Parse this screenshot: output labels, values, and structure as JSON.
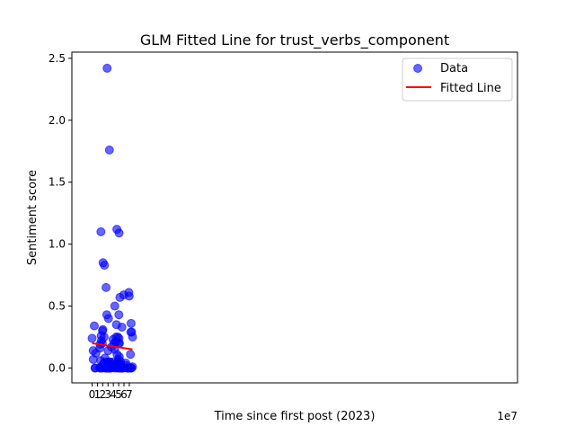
{
  "chart_data": {
    "type": "scatter",
    "title": "GLM Fitted Line for trust_verbs_component",
    "xlabel": "Time since first post (2023)",
    "ylabel": "Sentiment score",
    "x_offset_label": "1e7",
    "xlim": [
      -3.8,
      80
    ],
    "ylim": [
      -0.12,
      2.55
    ],
    "xticks": [
      0,
      1,
      2,
      3,
      4,
      5,
      6,
      7
    ],
    "yticks": [
      0.0,
      0.5,
      1.0,
      1.5,
      2.0,
      2.5
    ],
    "xtick_labels": [
      "0",
      "1",
      "2",
      "3",
      "4",
      "5",
      "6",
      "7"
    ],
    "ytick_labels": [
      "0.0",
      "0.5",
      "1.0",
      "1.5",
      "2.0",
      "2.5"
    ],
    "grid": false,
    "legend_position": "top-right",
    "series": [
      {
        "name": "Data",
        "kind": "scatter",
        "color": "#0000ff",
        "x": [
          0.0,
          2.0,
          2.2,
          4.2,
          5.6,
          5.9,
          7.2,
          14.1,
          14.6,
          15.0,
          15.6,
          16.1,
          16.6,
          17.1,
          17.4,
          17.7,
          18.2,
          19.2,
          19.4,
          19.6,
          19.9,
          20.2,
          20.6,
          22.1,
          22.7,
          23.2,
          23.6,
          24.1,
          24.9,
          25.3,
          26.2,
          26.3,
          26.6,
          26.9,
          27.1,
          27.2,
          27.4,
          27.6,
          27.7,
          27.9,
          28.1,
          28.2,
          28.3,
          28.6,
          28.7,
          29.1,
          29.4,
          30.1,
          30.8,
          31.1,
          31.4,
          31.6,
          32.1,
          32.4,
          32.6,
          32.8,
          33.0,
          33.2,
          33.4,
          33.6,
          33.8,
          34.0,
          34.2,
          34.5,
          35.7,
          36.5,
          37.1,
          39.4,
          40.1,
          41.2,
          41.9,
          42.5,
          42.7,
          43.1,
          43.5,
          43.9,
          45.0,
          45.2,
          45.6,
          45.8,
          46.4,
          46.6,
          46.9,
          47.1,
          47.5,
          48.0,
          48.4,
          49.2,
          49.5,
          49.8,
          50.1,
          50.4,
          50.6,
          50.8,
          51.3,
          51.5,
          52.0,
          52.3,
          52.9,
          53.1,
          53.4,
          53.7,
          54.0,
          54.2,
          54.6,
          55.0,
          55.4,
          56.1,
          56.4,
          57.0,
          59.1,
          59.4,
          63.4,
          64.4,
          65.4,
          66.4,
          66.9,
          67.4,
          69.1,
          69.8,
          70.4,
          72.1,
          72.6,
          72.9,
          73.1,
          73.4,
          74.1,
          74.5,
          75.9,
          76.1
        ],
        "y": [
          0.24,
          0.14,
          0.07,
          0.34,
          0.0,
          0.0,
          0.12,
          0.0,
          0.16,
          0.19,
          0.0,
          0.06,
          1.1,
          0.26,
          0.22,
          0.0,
          0.0,
          0.2,
          0.02,
          0.3,
          0.01,
          0.31,
          0.85,
          0.04,
          0.25,
          0.83,
          0.0,
          0.08,
          0.02,
          0.0,
          0.05,
          0.65,
          0.01,
          0.02,
          0.03,
          0.0,
          0.04,
          0.43,
          0.02,
          0.0,
          0.04,
          0.01,
          2.42,
          0.02,
          0.03,
          0.0,
          0.0,
          0.14,
          0.4,
          0.0,
          0.05,
          0.0,
          0.01,
          0.03,
          1.76,
          0.0,
          0.0,
          0.02,
          0.05,
          0.0,
          0.01,
          0.0,
          0.02,
          0.0,
          0.0,
          0.17,
          0.02,
          0.23,
          0.05,
          0.2,
          0.0,
          0.15,
          0.5,
          0.03,
          0.02,
          0.01,
          0.21,
          0.25,
          0.01,
          0.35,
          0.0,
          1.12,
          0.11,
          0.04,
          0.03,
          0.04,
          0.25,
          0.01,
          0.0,
          0.07,
          0.2,
          0.43,
          0.24,
          1.09,
          0.09,
          0.2,
          0.0,
          0.57,
          0.02,
          0.03,
          0.0,
          0.05,
          0.0,
          0.01,
          0.0,
          0.0,
          0.0,
          0.33,
          0.0,
          0.0,
          0.0,
          0.59,
          0.04,
          0.02,
          0.0,
          0.0,
          0.0,
          0.0,
          0.61,
          0.58,
          0.0,
          0.11,
          0.0,
          0.29,
          0.0,
          0.36,
          0.0,
          0.29,
          0.01,
          0.25
        ]
      },
      {
        "name": "Fitted Line",
        "kind": "line",
        "color": "#ff0000",
        "x": [
          0.0,
          76.0
        ],
        "y": [
          0.2,
          0.15
        ]
      }
    ]
  }
}
